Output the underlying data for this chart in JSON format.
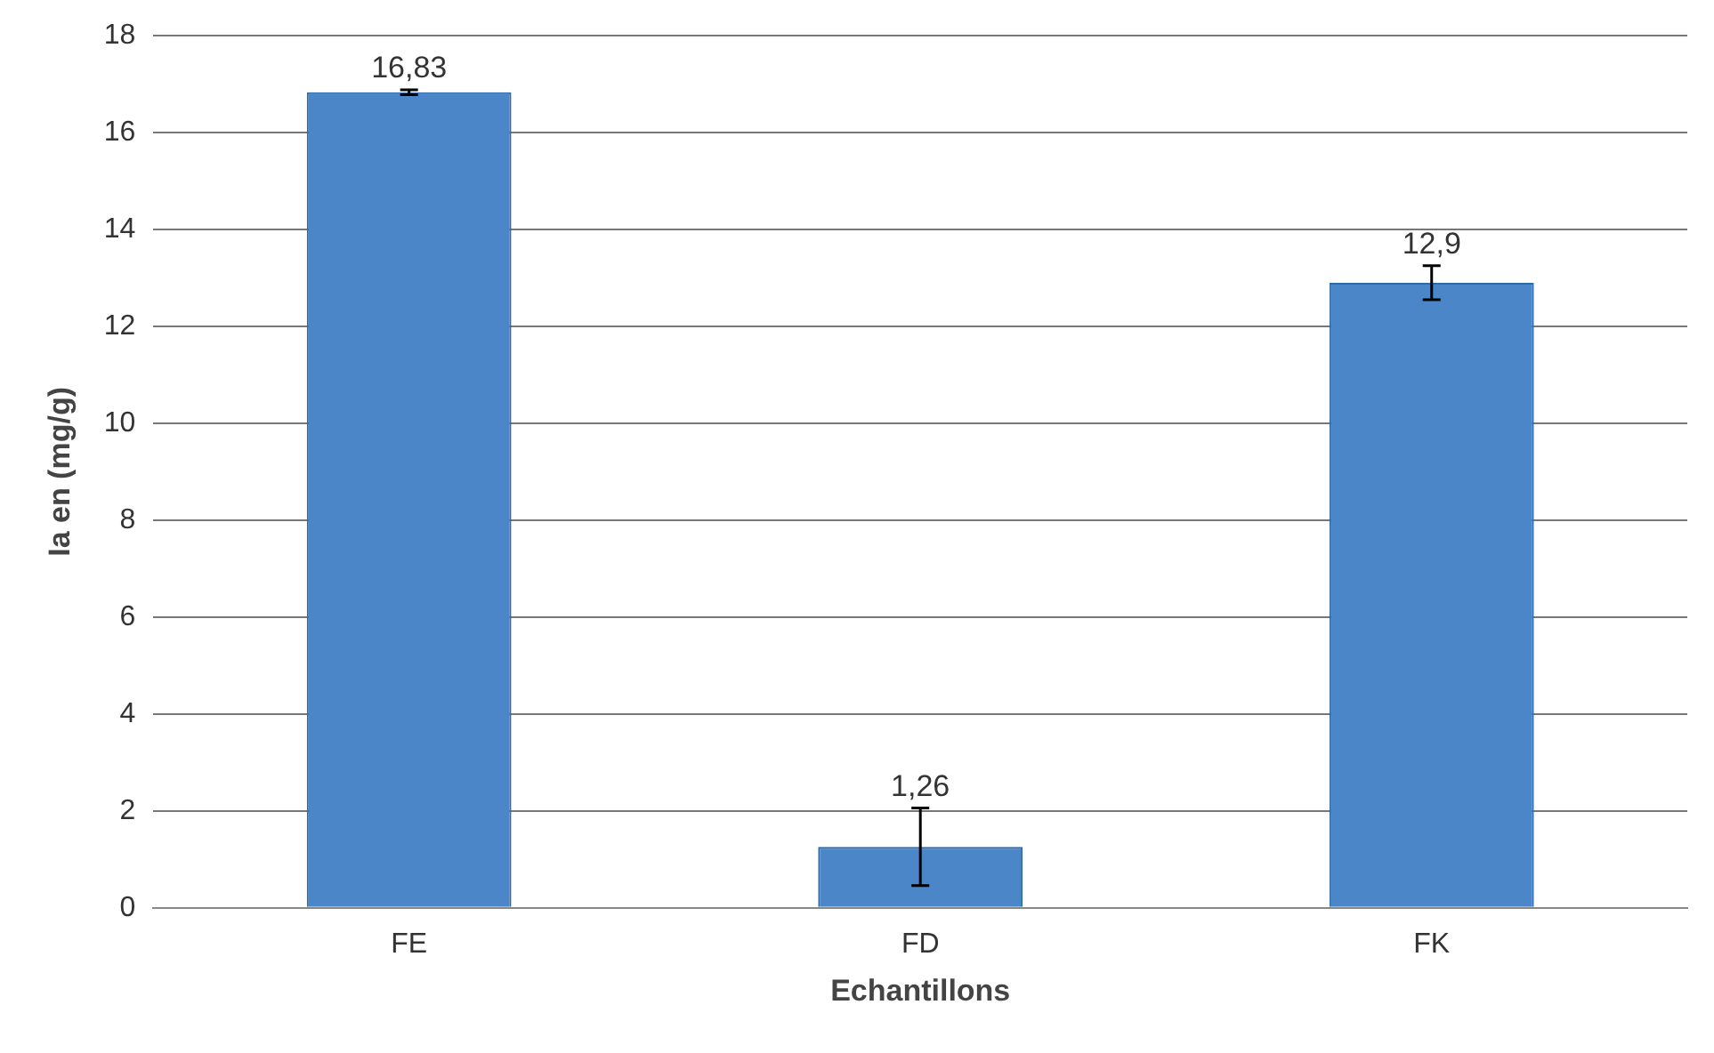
{
  "chart_data": {
    "type": "bar",
    "xlabel": "Echantillons",
    "ylabel": "Ia en (mg/g)",
    "categories": [
      "FE",
      "FD",
      "FK"
    ],
    "values": [
      16.83,
      1.26,
      12.9
    ],
    "value_labels": [
      "16,83",
      "1,26",
      "12,9"
    ],
    "errors": [
      0.05,
      0.8,
      0.35
    ],
    "color": "#4a86c8",
    "ylim": [
      0,
      18
    ],
    "yticks": [
      0,
      2,
      4,
      6,
      8,
      10,
      12,
      14,
      16,
      18
    ],
    "grid": "y",
    "legend": false
  }
}
